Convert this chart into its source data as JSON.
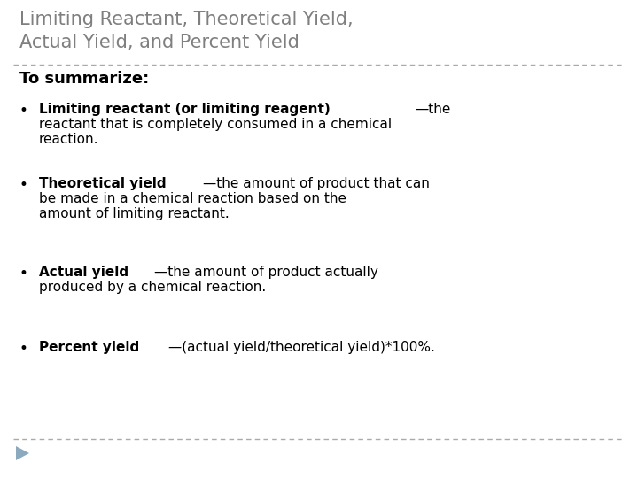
{
  "background_color": "#ffffff",
  "title_line1": "Limiting Reactant, Theoretical Yield,",
  "title_line2": "Actual Yield, and Percent Yield",
  "title_color": "#7f7f7f",
  "title_fontsize": 15,
  "section_header": "To summarize:",
  "section_header_fontsize": 13,
  "section_header_color": "#000000",
  "bullet_fontsize": 11,
  "bullet_color": "#000000",
  "bullets": [
    {
      "bold_part": "Limiting reactant (or limiting reagent)",
      "normal_part": "—the",
      "wrap_lines": [
        "reactant that is completely consumed in a chemical",
        "reaction."
      ]
    },
    {
      "bold_part": "Theoretical yield",
      "normal_part": "—the amount of product that can",
      "wrap_lines": [
        "be made in a chemical reaction based on the",
        "amount of limiting reactant."
      ]
    },
    {
      "bold_part": "Actual yield",
      "normal_part": "—the amount of product actually",
      "wrap_lines": [
        "produced by a chemical reaction."
      ]
    },
    {
      "bold_part": "Percent yield",
      "normal_part": "—(actual yield/theoretical yield)*100%.",
      "wrap_lines": []
    }
  ],
  "divider_color": "#aaaaaa",
  "triangle_color": "#8baabe"
}
